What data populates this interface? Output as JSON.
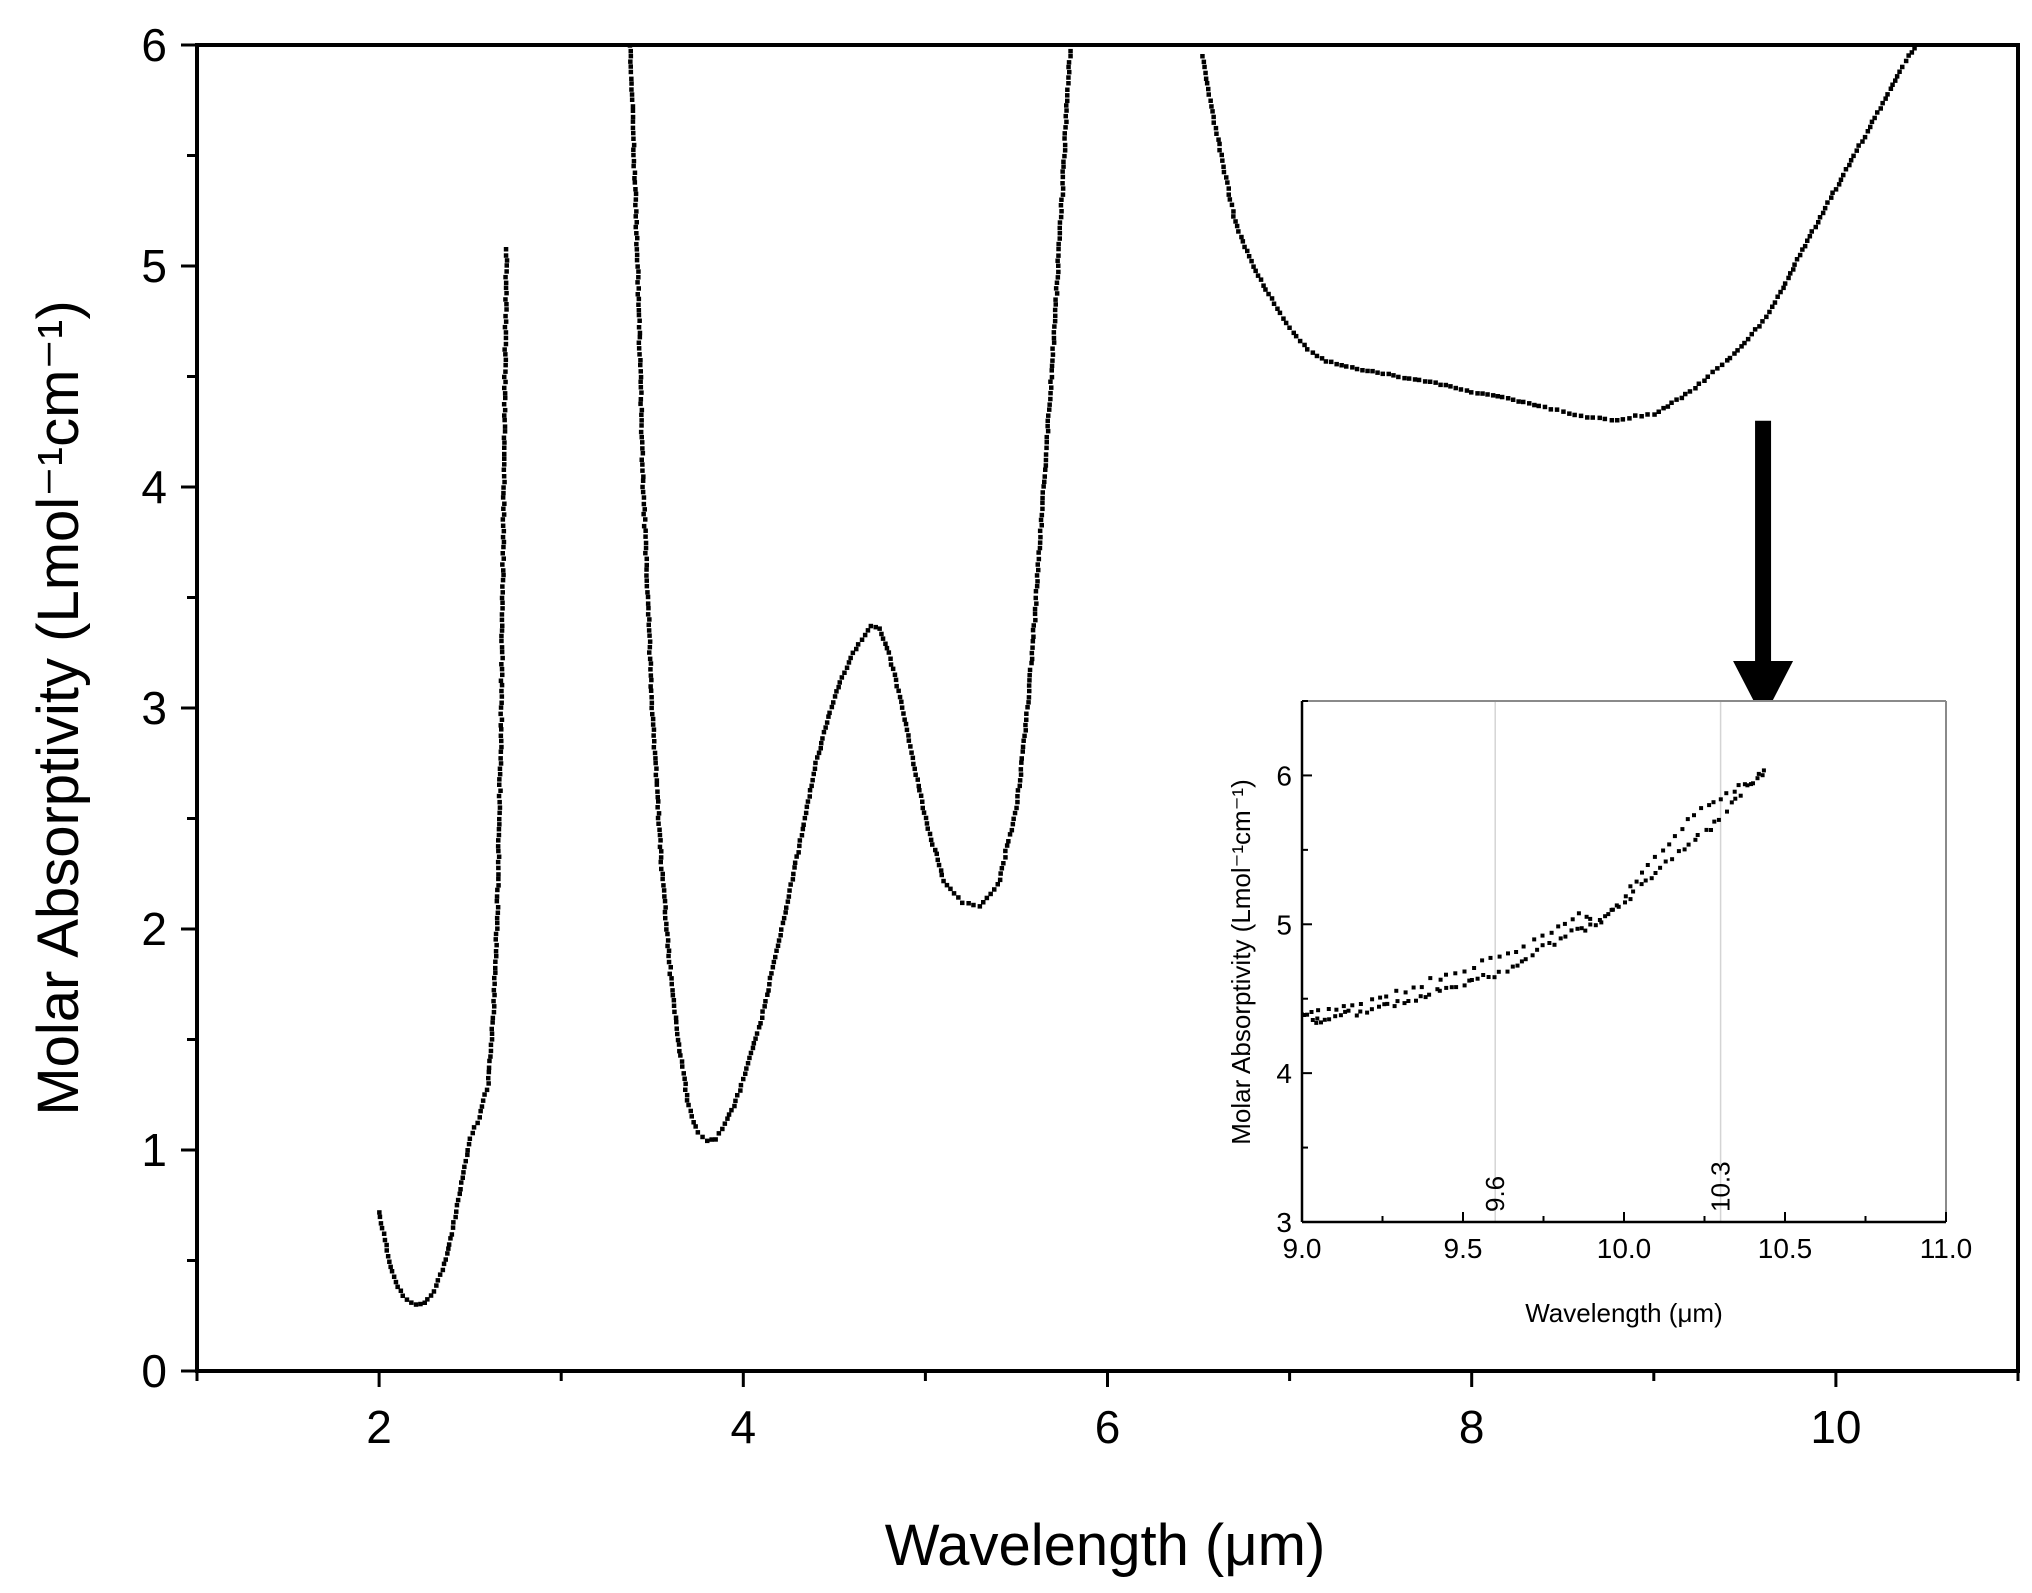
{
  "chart_data": [
    {
      "type": "line",
      "title": "",
      "xlabel": "Wavelength (μm)",
      "ylabel": "Molar Absorptivity (Lmol⁻¹cm⁻¹)",
      "xlim": [
        1,
        11
      ],
      "ylim": [
        0,
        6
      ],
      "xticks": [
        2,
        4,
        6,
        8,
        10
      ],
      "yticks": [
        0,
        1,
        2,
        3,
        4,
        5,
        6
      ],
      "xtick_labels": [
        "2",
        "4",
        "6",
        "8",
        "10"
      ],
      "ytick_labels": [
        "0",
        "1",
        "2",
        "3",
        "4",
        "5",
        "6"
      ],
      "grid": false,
      "series": [
        {
          "style": "dotted",
          "color": "#000000",
          "segments": [
            {
              "x": [
                2.0,
                2.05,
                2.1,
                2.15,
                2.2,
                2.25,
                2.3,
                2.35,
                2.4,
                2.45,
                2.5,
                2.55,
                2.6,
                2.63,
                2.65,
                2.67,
                2.68,
                2.69,
                2.7
              ],
              "y": [
                0.72,
                0.52,
                0.38,
                0.32,
                0.3,
                0.31,
                0.36,
                0.46,
                0.62,
                0.85,
                1.05,
                1.15,
                1.3,
                1.65,
                2.1,
                2.9,
                3.6,
                4.4,
                5.1
              ]
            },
            {
              "x": [
                3.38,
                3.42,
                3.45,
                3.5,
                3.55,
                3.6,
                3.65,
                3.7,
                3.75,
                3.8,
                3.85,
                3.9,
                3.95,
                4.0,
                4.1,
                4.2,
                4.3,
                4.4,
                4.5,
                4.6,
                4.7,
                4.75,
                4.8,
                4.9,
                5.0,
                5.1,
                5.2,
                5.3,
                5.4,
                5.5,
                5.55,
                5.6,
                5.65,
                5.7,
                5.75,
                5.78,
                5.8
              ],
              "y": [
                6.0,
                5.0,
                4.0,
                3.0,
                2.3,
                1.8,
                1.45,
                1.2,
                1.08,
                1.04,
                1.05,
                1.12,
                1.2,
                1.32,
                1.6,
                1.95,
                2.35,
                2.75,
                3.05,
                3.25,
                3.37,
                3.36,
                3.25,
                2.9,
                2.5,
                2.22,
                2.12,
                2.1,
                2.2,
                2.55,
                2.9,
                3.4,
                4.0,
                4.6,
                5.3,
                5.8,
                6.0
              ]
            },
            {
              "x": [
                6.52,
                6.55,
                6.6,
                6.65,
                6.7,
                6.8,
                6.9,
                7.0,
                7.1,
                7.2,
                7.4,
                7.6,
                7.8,
                8.0,
                8.2,
                8.4,
                8.5,
                8.6,
                8.7,
                8.8,
                8.9,
                9.0,
                9.1,
                9.2,
                9.3,
                9.4,
                9.5,
                9.6,
                9.7,
                9.8,
                9.9,
                10.0,
                10.1,
                10.2,
                10.3,
                10.35,
                10.4,
                10.45
              ],
              "y": [
                5.95,
                5.8,
                5.6,
                5.4,
                5.2,
                5.0,
                4.85,
                4.72,
                4.62,
                4.57,
                4.53,
                4.5,
                4.47,
                4.43,
                4.4,
                4.36,
                4.34,
                4.32,
                4.31,
                4.3,
                4.32,
                4.33,
                4.38,
                4.43,
                4.5,
                4.57,
                4.65,
                4.75,
                4.88,
                5.05,
                5.2,
                5.35,
                5.5,
                5.65,
                5.8,
                5.88,
                5.95,
                6.0
              ]
            }
          ]
        }
      ],
      "annotations": [
        {
          "type": "arrow",
          "from": [
            9.6,
            4.3
          ],
          "to": [
            9.6,
            2.95
          ]
        }
      ]
    },
    {
      "type": "scatter",
      "title": "",
      "xlabel": "Wavelength (μm)",
      "ylabel": "Molar Absorptivity (Lmol⁻¹cm⁻¹)",
      "xlim": [
        9.0,
        11.0
      ],
      "ylim": [
        3,
        6.5
      ],
      "xticks": [
        9.0,
        9.5,
        10.0,
        10.5,
        11.0
      ],
      "yticks": [
        3,
        4,
        5,
        6
      ],
      "xtick_labels": [
        "9.0",
        "9.5",
        "10.0",
        "10.5",
        "11.0"
      ],
      "ytick_labels": [
        "3",
        "4",
        "5",
        "6"
      ],
      "grid": false,
      "reference_lines": [
        {
          "x": 9.6,
          "label": "9.6"
        },
        {
          "x": 10.3,
          "label": "10.3"
        }
      ],
      "series": [
        {
          "style": "dotted",
          "color": "#000000",
          "x": [
            9.0,
            9.03,
            9.06,
            9.1,
            9.15,
            9.2,
            9.25,
            9.3,
            9.35,
            9.4,
            9.45,
            9.5,
            9.55,
            9.6,
            9.65,
            9.7,
            9.75,
            9.8,
            9.85,
            9.9,
            9.95,
            10.0,
            10.05,
            10.1,
            10.15,
            10.2,
            10.25,
            10.3,
            10.35,
            10.4,
            10.45
          ],
          "y": [
            4.4,
            4.36,
            4.35,
            4.38,
            4.4,
            4.42,
            4.45,
            4.48,
            4.5,
            4.54,
            4.58,
            4.6,
            4.63,
            4.66,
            4.72,
            4.78,
            4.84,
            4.9,
            4.96,
            4.98,
            5.05,
            5.15,
            5.25,
            5.35,
            5.45,
            5.55,
            5.62,
            5.72,
            5.85,
            5.95,
            6.02
          ]
        },
        {
          "style": "dotted",
          "color": "#000000",
          "x": [
            9.0,
            9.08,
            9.16,
            9.24,
            9.32,
            9.4,
            9.48,
            9.56,
            9.64,
            9.72,
            9.8,
            9.86,
            9.92,
            9.98,
            10.04,
            10.1,
            10.16,
            10.22,
            10.28,
            10.34,
            10.4,
            10.45
          ],
          "y": [
            4.38,
            4.42,
            4.46,
            4.5,
            4.55,
            4.62,
            4.68,
            4.74,
            4.8,
            4.88,
            4.98,
            5.08,
            5.02,
            5.12,
            5.3,
            5.45,
            5.6,
            5.75,
            5.82,
            5.9,
            5.96,
            6.05
          ]
        }
      ]
    }
  ]
}
